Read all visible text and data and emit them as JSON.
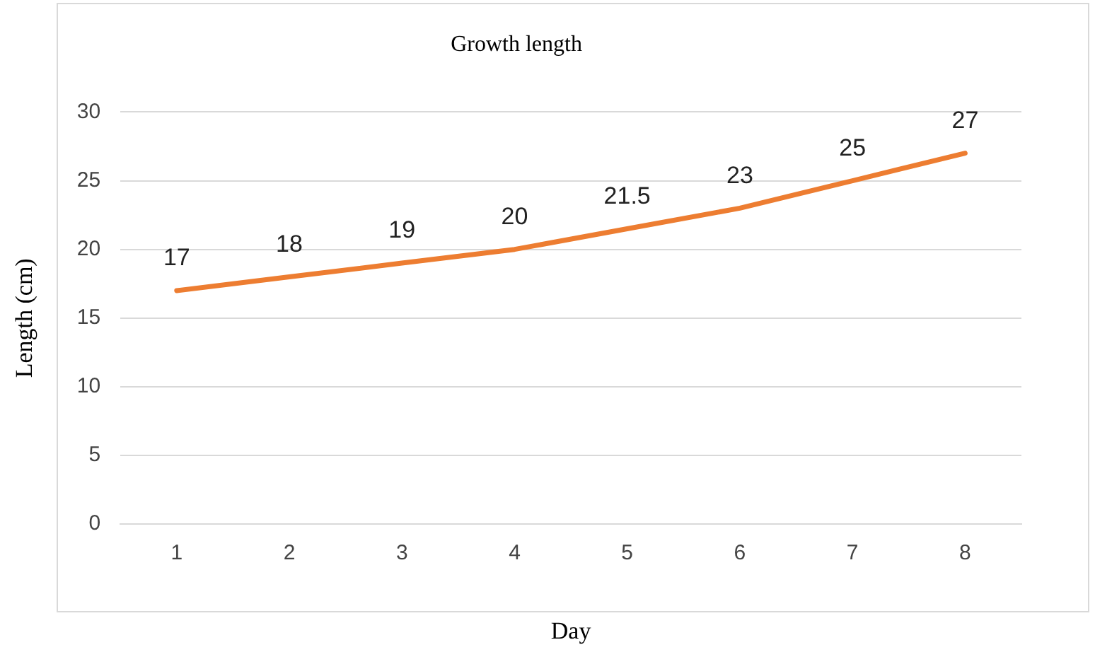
{
  "chart_data": {
    "type": "line",
    "title": "Growth length",
    "xlabel": "Day",
    "ylabel": "Length (cm)",
    "categories": [
      "1",
      "2",
      "3",
      "4",
      "5",
      "6",
      "7",
      "8"
    ],
    "series": [
      {
        "color": "#ed7d31",
        "values": [
          17,
          18,
          19,
          20,
          21.5,
          23,
          25,
          27
        ]
      }
    ],
    "ylim": [
      0,
      30
    ],
    "yticks": [
      0,
      5,
      10,
      15,
      20,
      25,
      30
    ],
    "grid": "y",
    "legend": false,
    "marker": "none",
    "line_style": "solid",
    "data_labels": true
  }
}
